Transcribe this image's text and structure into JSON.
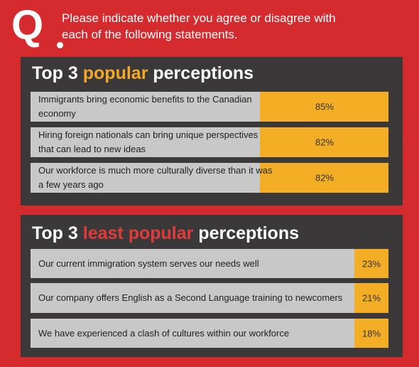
{
  "header": {
    "q_letter": "Q",
    "question": "Please indicate whether you agree or disagree with each of the following statements."
  },
  "panels": [
    {
      "title_pre": "Top 3 ",
      "title_highlight": "popular",
      "title_post": " perceptions",
      "highlight_color": "#f4a82a",
      "rows": [
        {
          "statement": "Immigrants bring economic benefits to the Canadian economy",
          "percent_label": "85%"
        },
        {
          "statement": "Hiring foreign nationals can bring unique perspectives that can lead to new ideas",
          "percent_label": "82%"
        },
        {
          "statement": "Our workforce is much more culturally diverse than it was a few years ago",
          "percent_label": "82%"
        }
      ]
    },
    {
      "title_pre": "Top 3 ",
      "title_highlight": "least popular",
      "title_post": " perceptions",
      "highlight_color": "#e03a3a",
      "rows": [
        {
          "statement": "Our current immigration system serves our needs well",
          "percent_label": "23%"
        },
        {
          "statement": "Our company offers English as a Second Language training to newcomers",
          "percent_label": "21%"
        },
        {
          "statement": "We have experienced  a clash of cultures within our workforce",
          "percent_label": "18%"
        }
      ]
    }
  ],
  "chart_data": {
    "type": "bar",
    "orientation": "horizontal",
    "categories": [
      "Immigrants bring economic benefits to the Canadian economy",
      "Hiring foreign nationals can bring unique perspectives that can lead to new ideas",
      "Our workforce is much more culturally diverse than it was a few years ago",
      "Our current immigration system serves our needs well",
      "Our company offers English as a Second Language training to newcomers",
      "We have experienced  a clash of cultures within our workforce"
    ],
    "values": [
      85,
      82,
      82,
      23,
      21,
      18
    ],
    "unit": "%",
    "bar_color": "#f4ae26",
    "track_color": "#c8c8c8",
    "panel_color": "#3a3838",
    "background_color": "#d52b2e"
  }
}
